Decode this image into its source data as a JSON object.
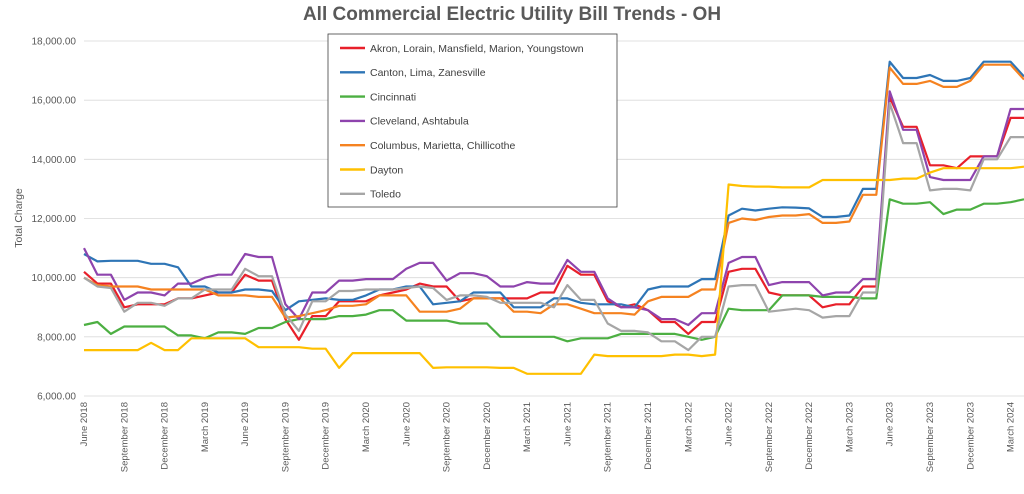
{
  "chart_data": {
    "type": "line",
    "title": "All Commercial Electric Utility Bill Trends - OH",
    "ylabel": "Total Charge",
    "xlabel": "",
    "ylim": [
      6000,
      18000
    ],
    "yticks": [
      "6,000.00",
      "8,000.00",
      "10,000.00",
      "12,000.00",
      "14,000.00",
      "16,000.00",
      "18,000.00"
    ],
    "grid": true,
    "legend_position": "top-left inside",
    "x_start": "June 2018",
    "x_tick_labels": [
      "June 2018",
      "September 2018",
      "December 2018",
      "March 2019",
      "June 2019",
      "September 2019",
      "December 2019",
      "March 2020",
      "June 2020",
      "September 2020",
      "December 2020",
      "March 2021",
      "June 2021",
      "September 2021",
      "December 2021",
      "March 2022",
      "June 2022",
      "September 2022",
      "December 2022",
      "March 2023",
      "June 2023",
      "September 2023",
      "December 2023",
      "March 2024"
    ],
    "series": [
      {
        "name": "Akron, Lorain, Mansfield, Marion, Youngstown",
        "color": "#e8202a",
        "values": [
          10200,
          9800,
          9800,
          9000,
          9100,
          9100,
          9100,
          9300,
          9300,
          9400,
          9500,
          9500,
          10100,
          9900,
          9900,
          8600,
          7900,
          8700,
          8700,
          9200,
          9200,
          9200,
          9400,
          9500,
          9600,
          9800,
          9700,
          9700,
          9200,
          9300,
          9300,
          9300,
          9300,
          9300,
          9500,
          9500,
          10400,
          10100,
          10100,
          9200,
          9000,
          9100,
          8900,
          8500,
          8500,
          8100,
          8500,
          8500,
          10200,
          10300,
          10300,
          9500,
          9400,
          9400,
          9400,
          9000,
          9100,
          9100,
          9700,
          9700,
          16100,
          15100,
          15100,
          13800,
          13800,
          13700,
          14100,
          14100,
          14100,
          15400,
          15400
        ]
      },
      {
        "name": "Canton, Lima, Zanesville",
        "color": "#2e75b6",
        "values": [
          10800,
          10550,
          10570,
          10570,
          10570,
          10470,
          10470,
          10350,
          9700,
          9700,
          9500,
          9500,
          9600,
          9600,
          9550,
          8900,
          9200,
          9250,
          9300,
          9250,
          9250,
          9400,
          9600,
          9600,
          9700,
          9700,
          9100,
          9150,
          9200,
          9500,
          9500,
          9500,
          9000,
          9000,
          9000,
          9300,
          9300,
          9150,
          9100,
          9100,
          9100,
          9000,
          9600,
          9700,
          9700,
          9700,
          9950,
          9950,
          12100,
          12330,
          12270,
          12330,
          12380,
          12370,
          12340,
          12050,
          12050,
          12100,
          13000,
          13000,
          17300,
          16750,
          16750,
          16850,
          16650,
          16650,
          16750,
          17300,
          17300,
          17300,
          16800
        ]
      },
      {
        "name": "Cincinnati",
        "color": "#4caf42",
        "values": [
          8400,
          8500,
          8100,
          8350,
          8350,
          8350,
          8350,
          8050,
          8050,
          7950,
          8150,
          8150,
          8100,
          8300,
          8300,
          8500,
          8600,
          8600,
          8600,
          8700,
          8700,
          8750,
          8900,
          8900,
          8550,
          8550,
          8550,
          8550,
          8450,
          8450,
          8450,
          8000,
          8000,
          8000,
          8000,
          8000,
          7850,
          7950,
          7950,
          7950,
          8100,
          8100,
          8100,
          8100,
          8100,
          8000,
          7900,
          8000,
          8950,
          8900,
          8900,
          8900,
          9400,
          9400,
          9400,
          9350,
          9350,
          9350,
          9300,
          9300,
          12650,
          12500,
          12500,
          12550,
          12150,
          12300,
          12300,
          12500,
          12500,
          12550,
          12650
        ]
      },
      {
        "name": "Cleveland, Ashtabula",
        "color": "#8e44ad",
        "values": [
          11000,
          10100,
          10100,
          9250,
          9500,
          9500,
          9400,
          9800,
          9800,
          10000,
          10100,
          10100,
          10800,
          10700,
          10700,
          9100,
          8600,
          9500,
          9500,
          9900,
          9900,
          9950,
          9950,
          9950,
          10300,
          10500,
          10500,
          9900,
          10150,
          10150,
          10050,
          9700,
          9700,
          9850,
          9800,
          9800,
          10600,
          10200,
          10200,
          9300,
          9000,
          9000,
          8900,
          8600,
          8600,
          8400,
          8800,
          8800,
          10500,
          10700,
          10700,
          9750,
          9850,
          9850,
          9850,
          9400,
          9500,
          9500,
          9950,
          9950,
          16300,
          15000,
          15000,
          13400,
          13300,
          13300,
          13300,
          14100,
          14100,
          15700,
          15700
        ]
      },
      {
        "name": "Columbus, Marietta, Chillicothe",
        "color": "#f58220",
        "values": [
          10000,
          9750,
          9700,
          9700,
          9700,
          9600,
          9600,
          9600,
          9600,
          9600,
          9400,
          9400,
          9400,
          9350,
          9350,
          8650,
          8700,
          8800,
          8900,
          9050,
          9050,
          9100,
          9400,
          9400,
          9400,
          8850,
          8850,
          8850,
          8950,
          9300,
          9300,
          9300,
          8850,
          8850,
          8800,
          9100,
          9100,
          8950,
          8800,
          8800,
          8800,
          8750,
          9200,
          9350,
          9350,
          9350,
          9600,
          9600,
          11850,
          12000,
          11950,
          12050,
          12100,
          12100,
          12150,
          11850,
          11850,
          11900,
          12800,
          12800,
          17100,
          16550,
          16550,
          16650,
          16450,
          16450,
          16650,
          17200,
          17200,
          17200,
          16700
        ]
      },
      {
        "name": "Dayton",
        "color": "#ffc000",
        "values": [
          7550,
          7550,
          7550,
          7550,
          7550,
          7800,
          7550,
          7550,
          7950,
          7950,
          7950,
          7950,
          7950,
          7650,
          7650,
          7650,
          7650,
          7600,
          7600,
          6950,
          7450,
          7450,
          7450,
          7450,
          7450,
          7450,
          6950,
          6970,
          6970,
          6970,
          6970,
          6950,
          6950,
          6750,
          6750,
          6750,
          6750,
          6750,
          7400,
          7350,
          7350,
          7350,
          7350,
          7350,
          7400,
          7400,
          7350,
          7400,
          13150,
          13100,
          13080,
          13080,
          13050,
          13050,
          13050,
          13300,
          13300,
          13300,
          13300,
          13300,
          13300,
          13350,
          13350,
          13550,
          13700,
          13700,
          13700,
          13700,
          13700,
          13700,
          13750
        ]
      },
      {
        "name": "Toledo",
        "color": "#a6a6a6",
        "values": [
          10000,
          9700,
          9650,
          8850,
          9150,
          9150,
          9050,
          9300,
          9300,
          9600,
          9600,
          9600,
          10300,
          10050,
          10050,
          8750,
          8200,
          9200,
          9200,
          9550,
          9550,
          9600,
          9600,
          9600,
          9650,
          9700,
          9650,
          9250,
          9400,
          9400,
          9350,
          9150,
          9150,
          9150,
          9150,
          9000,
          9750,
          9250,
          9250,
          8450,
          8200,
          8200,
          8150,
          7850,
          7850,
          7550,
          8000,
          8000,
          9700,
          9750,
          9750,
          8850,
          8900,
          8950,
          8900,
          8650,
          8700,
          8700,
          9500,
          9500,
          15900,
          14550,
          14550,
          12950,
          13000,
          13000,
          12950,
          14000,
          14000,
          14750,
          14750
        ]
      }
    ]
  }
}
